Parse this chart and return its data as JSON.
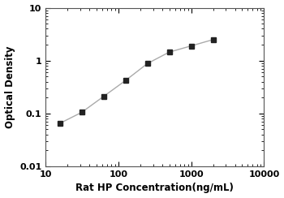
{
  "x_values": [
    15.625,
    31.25,
    62.5,
    125,
    250,
    500,
    1000,
    2000
  ],
  "y_values": [
    0.065,
    0.105,
    0.21,
    0.42,
    0.88,
    1.45,
    1.9,
    2.5
  ],
  "xlabel": "Rat HP Concentration(ng/mL)",
  "ylabel": "Optical Density",
  "xlim": [
    10,
    10000
  ],
  "ylim": [
    0.01,
    10
  ],
  "line_color": "#aaaaaa",
  "marker_color": "#222222",
  "marker": "s",
  "marker_size": 5,
  "line_width": 1.0,
  "background_color": "#ffffff",
  "xtick_locs": [
    10,
    100,
    1000,
    10000
  ],
  "xtick_labels": [
    "10",
    "100",
    "1000",
    "10000"
  ],
  "ytick_locs": [
    0.01,
    0.1,
    1,
    10
  ],
  "ytick_labels": [
    "0.01",
    "0.1",
    "1",
    "10"
  ],
  "xlabel_fontsize": 8.5,
  "ylabel_fontsize": 8.5,
  "tick_labelsize": 8,
  "xlabel_fontweight": "bold",
  "ylabel_fontweight": "bold",
  "tick_fontweight": "bold"
}
